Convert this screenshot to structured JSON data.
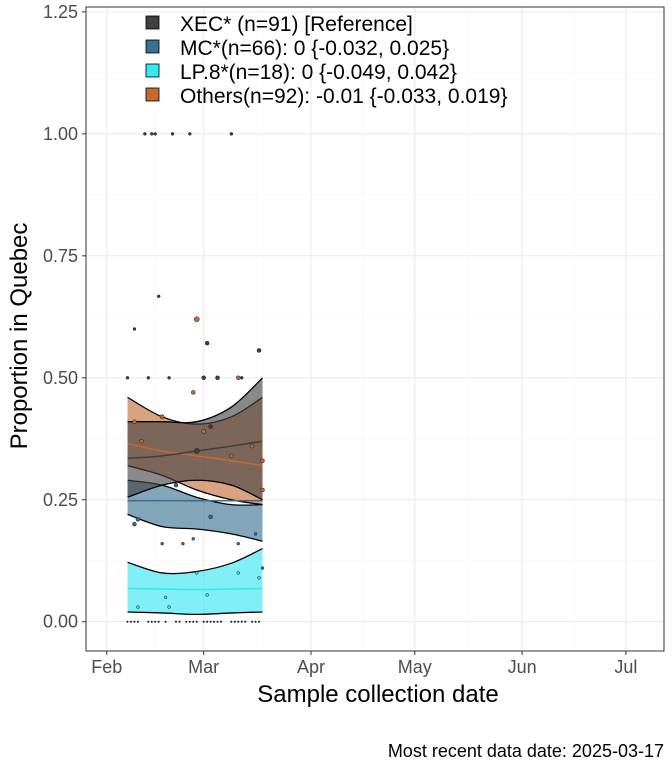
{
  "chart_data": {
    "type": "area",
    "xlabel": "Sample collection date",
    "ylabel": "Proportion in Quebec",
    "caption": "Most recent data date: 2025-03-17",
    "x_ticks": [
      "Feb",
      "Mar",
      "Apr",
      "May",
      "Jun",
      "Jul"
    ],
    "x_tick_dates": [
      "2025-02-01",
      "2025-03-01",
      "2025-04-01",
      "2025-05-01",
      "2025-06-01",
      "2025-07-01"
    ],
    "xlim": [
      "2025-01-26",
      "2025-07-12"
    ],
    "y_ticks": [
      "0.00",
      "0.25",
      "0.50",
      "0.75",
      "1.00",
      "1.25"
    ],
    "ylim": [
      -0.06,
      1.26
    ],
    "grid": true,
    "legend_position": "top-left",
    "colors": {
      "XEC": "#404040",
      "MC": "#386f92",
      "LP8": "#34e7f0",
      "Others": "#c26a33"
    },
    "series": [
      {
        "key": "LP8",
        "name": "LP.8*(n=18): 0 {-0.049, 0.042}",
        "x": [
          "2025-02-07",
          "2025-02-17",
          "2025-02-27",
          "2025-03-09",
          "2025-03-18"
        ],
        "fit": [
          0.068,
          0.067,
          0.066,
          0.067,
          0.068
        ],
        "lower": [
          0.02,
          0.018,
          0.015,
          0.018,
          0.02
        ],
        "upper": [
          0.122,
          0.1,
          0.103,
          0.12,
          0.15
        ]
      },
      {
        "key": "MC",
        "name": "MC*(n=66): 0 {-0.032, 0.025}",
        "x": [
          "2025-02-07",
          "2025-02-17",
          "2025-02-27",
          "2025-03-09",
          "2025-03-18"
        ],
        "fit": [
          0.248,
          0.248,
          0.248,
          0.248,
          0.248
        ],
        "lower": [
          0.22,
          0.195,
          0.19,
          0.18,
          0.165
        ],
        "upper": [
          0.29,
          0.28,
          0.255,
          0.24,
          0.24
        ]
      },
      {
        "key": "Others",
        "name": "Others(n=92): -0.01 {-0.033, 0.019}",
        "x": [
          "2025-02-07",
          "2025-02-17",
          "2025-02-27",
          "2025-03-09",
          "2025-03-18"
        ],
        "fit": [
          0.365,
          0.35,
          0.34,
          0.33,
          0.32
        ],
        "lower": [
          0.32,
          0.3,
          0.27,
          0.25,
          0.24
        ],
        "upper": [
          0.46,
          0.42,
          0.405,
          0.42,
          0.46
        ]
      },
      {
        "key": "XEC",
        "name": "XEC* (n=91)  [Reference]",
        "x": [
          "2025-02-07",
          "2025-02-17",
          "2025-02-27",
          "2025-03-09",
          "2025-03-18"
        ],
        "fit": [
          0.335,
          0.34,
          0.35,
          0.36,
          0.37
        ],
        "lower": [
          0.255,
          0.28,
          0.29,
          0.28,
          0.25
        ],
        "upper": [
          0.41,
          0.41,
          0.41,
          0.44,
          0.5
        ]
      }
    ],
    "points": [
      {
        "date": "2025-02-07",
        "y": 0.5,
        "series": "XEC",
        "n": 1
      },
      {
        "date": "2025-02-09",
        "y": 0.6,
        "series": "XEC",
        "n": 1
      },
      {
        "date": "2025-02-12",
        "y": 1.0,
        "series": "XEC",
        "n": 1
      },
      {
        "date": "2025-02-14",
        "y": 1.0,
        "series": "XEC",
        "n": 1
      },
      {
        "date": "2025-02-15",
        "y": 1.0,
        "series": "XEC",
        "n": 1
      },
      {
        "date": "2025-02-16",
        "y": 0.667,
        "series": "XEC",
        "n": 1
      },
      {
        "date": "2025-02-20",
        "y": 1.0,
        "series": "XEC",
        "n": 1
      },
      {
        "date": "2025-02-13",
        "y": 0.5,
        "series": "XEC",
        "n": 1
      },
      {
        "date": "2025-02-19",
        "y": 0.5,
        "series": "XEC",
        "n": 1
      },
      {
        "date": "2025-02-25",
        "y": 1.0,
        "series": "XEC",
        "n": 1
      },
      {
        "date": "2025-03-01",
        "y": 0.5,
        "series": "XEC",
        "n": 2
      },
      {
        "date": "2025-03-02",
        "y": 0.571,
        "series": "XEC",
        "n": 2
      },
      {
        "date": "2025-03-05",
        "y": 0.5,
        "series": "XEC",
        "n": 2
      },
      {
        "date": "2025-03-09",
        "y": 1.0,
        "series": "XEC",
        "n": 1
      },
      {
        "date": "2025-03-12",
        "y": 0.5,
        "series": "XEC",
        "n": 1
      },
      {
        "date": "2025-03-17",
        "y": 0.556,
        "series": "XEC",
        "n": 2
      },
      {
        "date": "2025-02-17",
        "y": 0.42,
        "series": "XEC",
        "n": 2
      },
      {
        "date": "2025-02-27",
        "y": 0.35,
        "series": "XEC",
        "n": 3
      },
      {
        "date": "2025-03-03",
        "y": 0.4,
        "series": "XEC",
        "n": 2
      },
      {
        "date": "2025-02-09",
        "y": 0.2,
        "series": "MC",
        "n": 2
      },
      {
        "date": "2025-02-10",
        "y": 0.21,
        "series": "MC",
        "n": 2
      },
      {
        "date": "2025-02-17",
        "y": 0.16,
        "series": "MC",
        "n": 1
      },
      {
        "date": "2025-02-21",
        "y": 0.28,
        "series": "MC",
        "n": 2
      },
      {
        "date": "2025-02-23",
        "y": 0.16,
        "series": "MC",
        "n": 1
      },
      {
        "date": "2025-02-26",
        "y": 0.17,
        "series": "MC",
        "n": 1
      },
      {
        "date": "2025-03-03",
        "y": 0.215,
        "series": "MC",
        "n": 2
      },
      {
        "date": "2025-03-11",
        "y": 0.16,
        "series": "MC",
        "n": 1
      },
      {
        "date": "2025-03-16",
        "y": 0.18,
        "series": "MC",
        "n": 1
      },
      {
        "date": "2025-03-18",
        "y": 0.11,
        "series": "MC",
        "n": 1
      },
      {
        "date": "2025-02-10",
        "y": 0.03,
        "series": "LP8",
        "n": 1
      },
      {
        "date": "2025-02-18",
        "y": 0.05,
        "series": "LP8",
        "n": 1
      },
      {
        "date": "2025-02-19",
        "y": 0.03,
        "series": "LP8",
        "n": 1
      },
      {
        "date": "2025-02-27",
        "y": 0.1,
        "series": "LP8",
        "n": 1
      },
      {
        "date": "2025-03-02",
        "y": 0.055,
        "series": "LP8",
        "n": 1
      },
      {
        "date": "2025-03-11",
        "y": 0.1,
        "series": "LP8",
        "n": 1
      },
      {
        "date": "2025-03-17",
        "y": 0.09,
        "series": "LP8",
        "n": 1
      },
      {
        "date": "2025-02-09",
        "y": 0.41,
        "series": "Others",
        "n": 2
      },
      {
        "date": "2025-02-11",
        "y": 0.37,
        "series": "Others",
        "n": 2
      },
      {
        "date": "2025-02-17",
        "y": 0.42,
        "series": "Others",
        "n": 2
      },
      {
        "date": "2025-02-26",
        "y": 0.47,
        "series": "Others",
        "n": 2
      },
      {
        "date": "2025-02-27",
        "y": 0.62,
        "series": "Others",
        "n": 3
      },
      {
        "date": "2025-03-01",
        "y": 0.39,
        "series": "Others",
        "n": 2
      },
      {
        "date": "2025-03-09",
        "y": 0.34,
        "series": "Others",
        "n": 2
      },
      {
        "date": "2025-03-11",
        "y": 0.5,
        "series": "Others",
        "n": 2
      },
      {
        "date": "2025-03-15",
        "y": 0.36,
        "series": "Others",
        "n": 2
      },
      {
        "date": "2025-03-18",
        "y": 0.33,
        "series": "Others",
        "n": 2
      },
      {
        "date": "2025-03-18",
        "y": 0.27,
        "series": "Others",
        "n": 2
      }
    ],
    "zero_points": [
      "2025-02-07",
      "2025-02-08",
      "2025-02-09",
      "2025-02-10",
      "2025-02-13",
      "2025-02-14",
      "2025-02-15",
      "2025-02-16",
      "2025-02-18",
      "2025-02-21",
      "2025-02-22",
      "2025-02-24",
      "2025-02-25",
      "2025-02-26",
      "2025-02-27",
      "2025-03-01",
      "2025-03-02",
      "2025-03-03",
      "2025-03-04",
      "2025-03-05",
      "2025-03-06",
      "2025-03-09",
      "2025-03-10",
      "2025-03-11",
      "2025-03-12",
      "2025-03-13",
      "2025-03-15",
      "2025-03-16",
      "2025-03-17"
    ]
  }
}
